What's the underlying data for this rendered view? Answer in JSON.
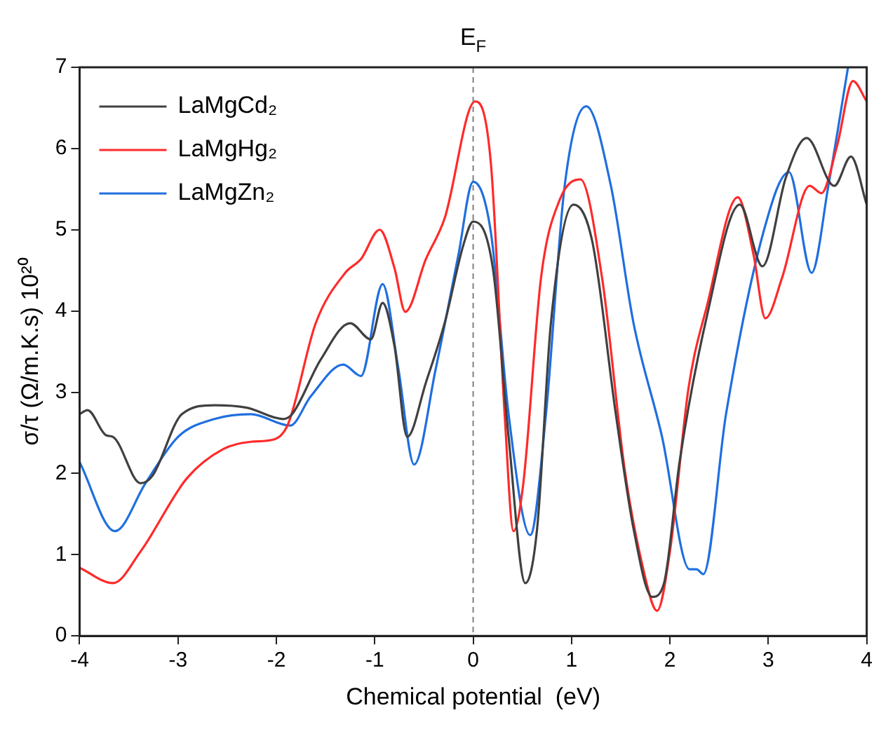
{
  "chart_data": {
    "type": "line",
    "xlabel": "Chemical potential  (eV)",
    "ylabel": "σ/τ (Ω/m.K.s) 10²⁰",
    "xlim": [
      -4,
      4
    ],
    "xticks": [
      -4,
      -3,
      -2,
      -1,
      0,
      1,
      2,
      3,
      4
    ],
    "ylim": [
      0,
      7
    ],
    "yticks": [
      0,
      1,
      2,
      3,
      4,
      5,
      6,
      7
    ],
    "grid": false,
    "legend": "top left",
    "marker": "none",
    "line_style": "solid",
    "ref_lines": [
      {
        "axis": "x",
        "value": 0,
        "label": "E$_{F}$",
        "color": "#808080",
        "line_style": "dashed"
      }
    ],
    "series": [
      {
        "name": "LaMgCd₂",
        "color": "#404040",
        "x": [
          -4,
          -3.92,
          -3.73,
          -3.66,
          -3.38,
          -3.26,
          -2.96,
          -2.63,
          -2.3,
          -1.93,
          -1.84,
          -1.55,
          -1.25,
          -1.04,
          -0.92,
          -0.8,
          -0.67,
          -0.48,
          -0.29,
          -0.1,
          0,
          0.2,
          0.36,
          0.53,
          0.65,
          0.79,
          1.02,
          1.21,
          1.45,
          1.63,
          1.82,
          1.94,
          2.1,
          2.38,
          2.71,
          2.94,
          3.18,
          3.39,
          3.67,
          3.84,
          4
        ],
        "values": [
          2.73,
          2.78,
          2.47,
          2.45,
          1.88,
          1.97,
          2.73,
          2.84,
          2.81,
          2.67,
          2.73,
          3.4,
          3.85,
          3.65,
          4.1,
          3.57,
          2.45,
          3.12,
          3.85,
          4.81,
          5.1,
          4.53,
          2.45,
          0.65,
          1.32,
          3.85,
          5.31,
          4.86,
          2.73,
          1.32,
          0.48,
          0.65,
          2.16,
          3.96,
          5.31,
          4.55,
          5.65,
          6.13,
          5.54,
          5.9,
          5.31
        ]
      },
      {
        "name": "LaMgHg₂",
        "color": "#ff2a2a",
        "x": [
          -4,
          -3.66,
          -3.38,
          -2.91,
          -2.54,
          -2.26,
          -2.02,
          -1.88,
          -1.6,
          -1.3,
          -1.14,
          -0.95,
          -0.8,
          -0.69,
          -0.48,
          -0.29,
          0.02,
          0.18,
          0.32,
          0.41,
          0.51,
          0.69,
          0.88,
          1.09,
          1.31,
          1.54,
          1.72,
          1.87,
          2,
          2.19,
          2.38,
          2.69,
          2.85,
          2.97,
          3.14,
          3.42,
          3.54,
          3.7,
          3.86,
          4
        ],
        "values": [
          0.84,
          0.65,
          1.04,
          1.94,
          2.3,
          2.39,
          2.42,
          2.61,
          3.85,
          4.47,
          4.64,
          5,
          4.53,
          3.99,
          4.64,
          5.14,
          6.58,
          5.82,
          2.73,
          1.29,
          1.88,
          4.41,
          5.37,
          5.62,
          4.41,
          2.05,
          0.87,
          0.31,
          1.04,
          3.06,
          4.08,
          5.4,
          4.69,
          3.91,
          4.41,
          5.54,
          5.45,
          6.04,
          6.83,
          6.58
        ]
      },
      {
        "name": "LaMgZn₂",
        "color": "#1f6fe0",
        "x": [
          -4,
          -3.64,
          -3.33,
          -3,
          -2.63,
          -2.26,
          -1.86,
          -1.65,
          -1.32,
          -1.14,
          -0.92,
          -0.76,
          -0.6,
          -0.38,
          -0.15,
          0,
          0.18,
          0.36,
          0.58,
          0.74,
          0.93,
          1.15,
          1.4,
          1.63,
          1.92,
          2.2,
          2.27,
          2.34,
          2.57,
          2.95,
          3.21,
          3.44,
          3.61,
          3.81
        ],
        "values": [
          2.14,
          1.29,
          1.88,
          2.45,
          2.67,
          2.73,
          2.59,
          2.95,
          3.34,
          3.2,
          4.33,
          3.29,
          2.11,
          3.29,
          4.69,
          5.59,
          4.97,
          2.73,
          1.24,
          2.73,
          5.54,
          6.52,
          5.54,
          3.85,
          2.45,
          0.82,
          0.82,
          0.76,
          2.73,
          4.97,
          5.71,
          4.47,
          5.54,
          7
        ]
      }
    ]
  }
}
